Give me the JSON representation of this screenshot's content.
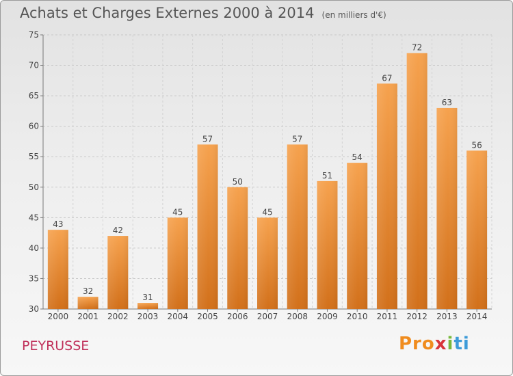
{
  "chart_data": {
    "type": "bar",
    "title": "Achats et Charges Externes 2000 à 2014",
    "subtitle": "(en milliers d'€)",
    "xlabel": "",
    "ylabel": "",
    "categories": [
      "2000",
      "2001",
      "2002",
      "2003",
      "2004",
      "2005",
      "2006",
      "2007",
      "2008",
      "2009",
      "2010",
      "2011",
      "2012",
      "2013",
      "2014"
    ],
    "values": [
      43,
      32,
      42,
      31,
      45,
      57,
      50,
      45,
      57,
      51,
      54,
      67,
      72,
      63,
      56
    ],
    "ylim": [
      30,
      75
    ],
    "yticks": [
      30,
      35,
      40,
      45,
      50,
      55,
      60,
      65,
      70,
      75
    ],
    "grid": true,
    "bar_color": "#f2963c",
    "bar_color_dark": "#d2701a"
  },
  "footer": {
    "commune": "PEYRUSSE",
    "logo": [
      "Pro",
      "x",
      "i",
      "ti"
    ]
  }
}
